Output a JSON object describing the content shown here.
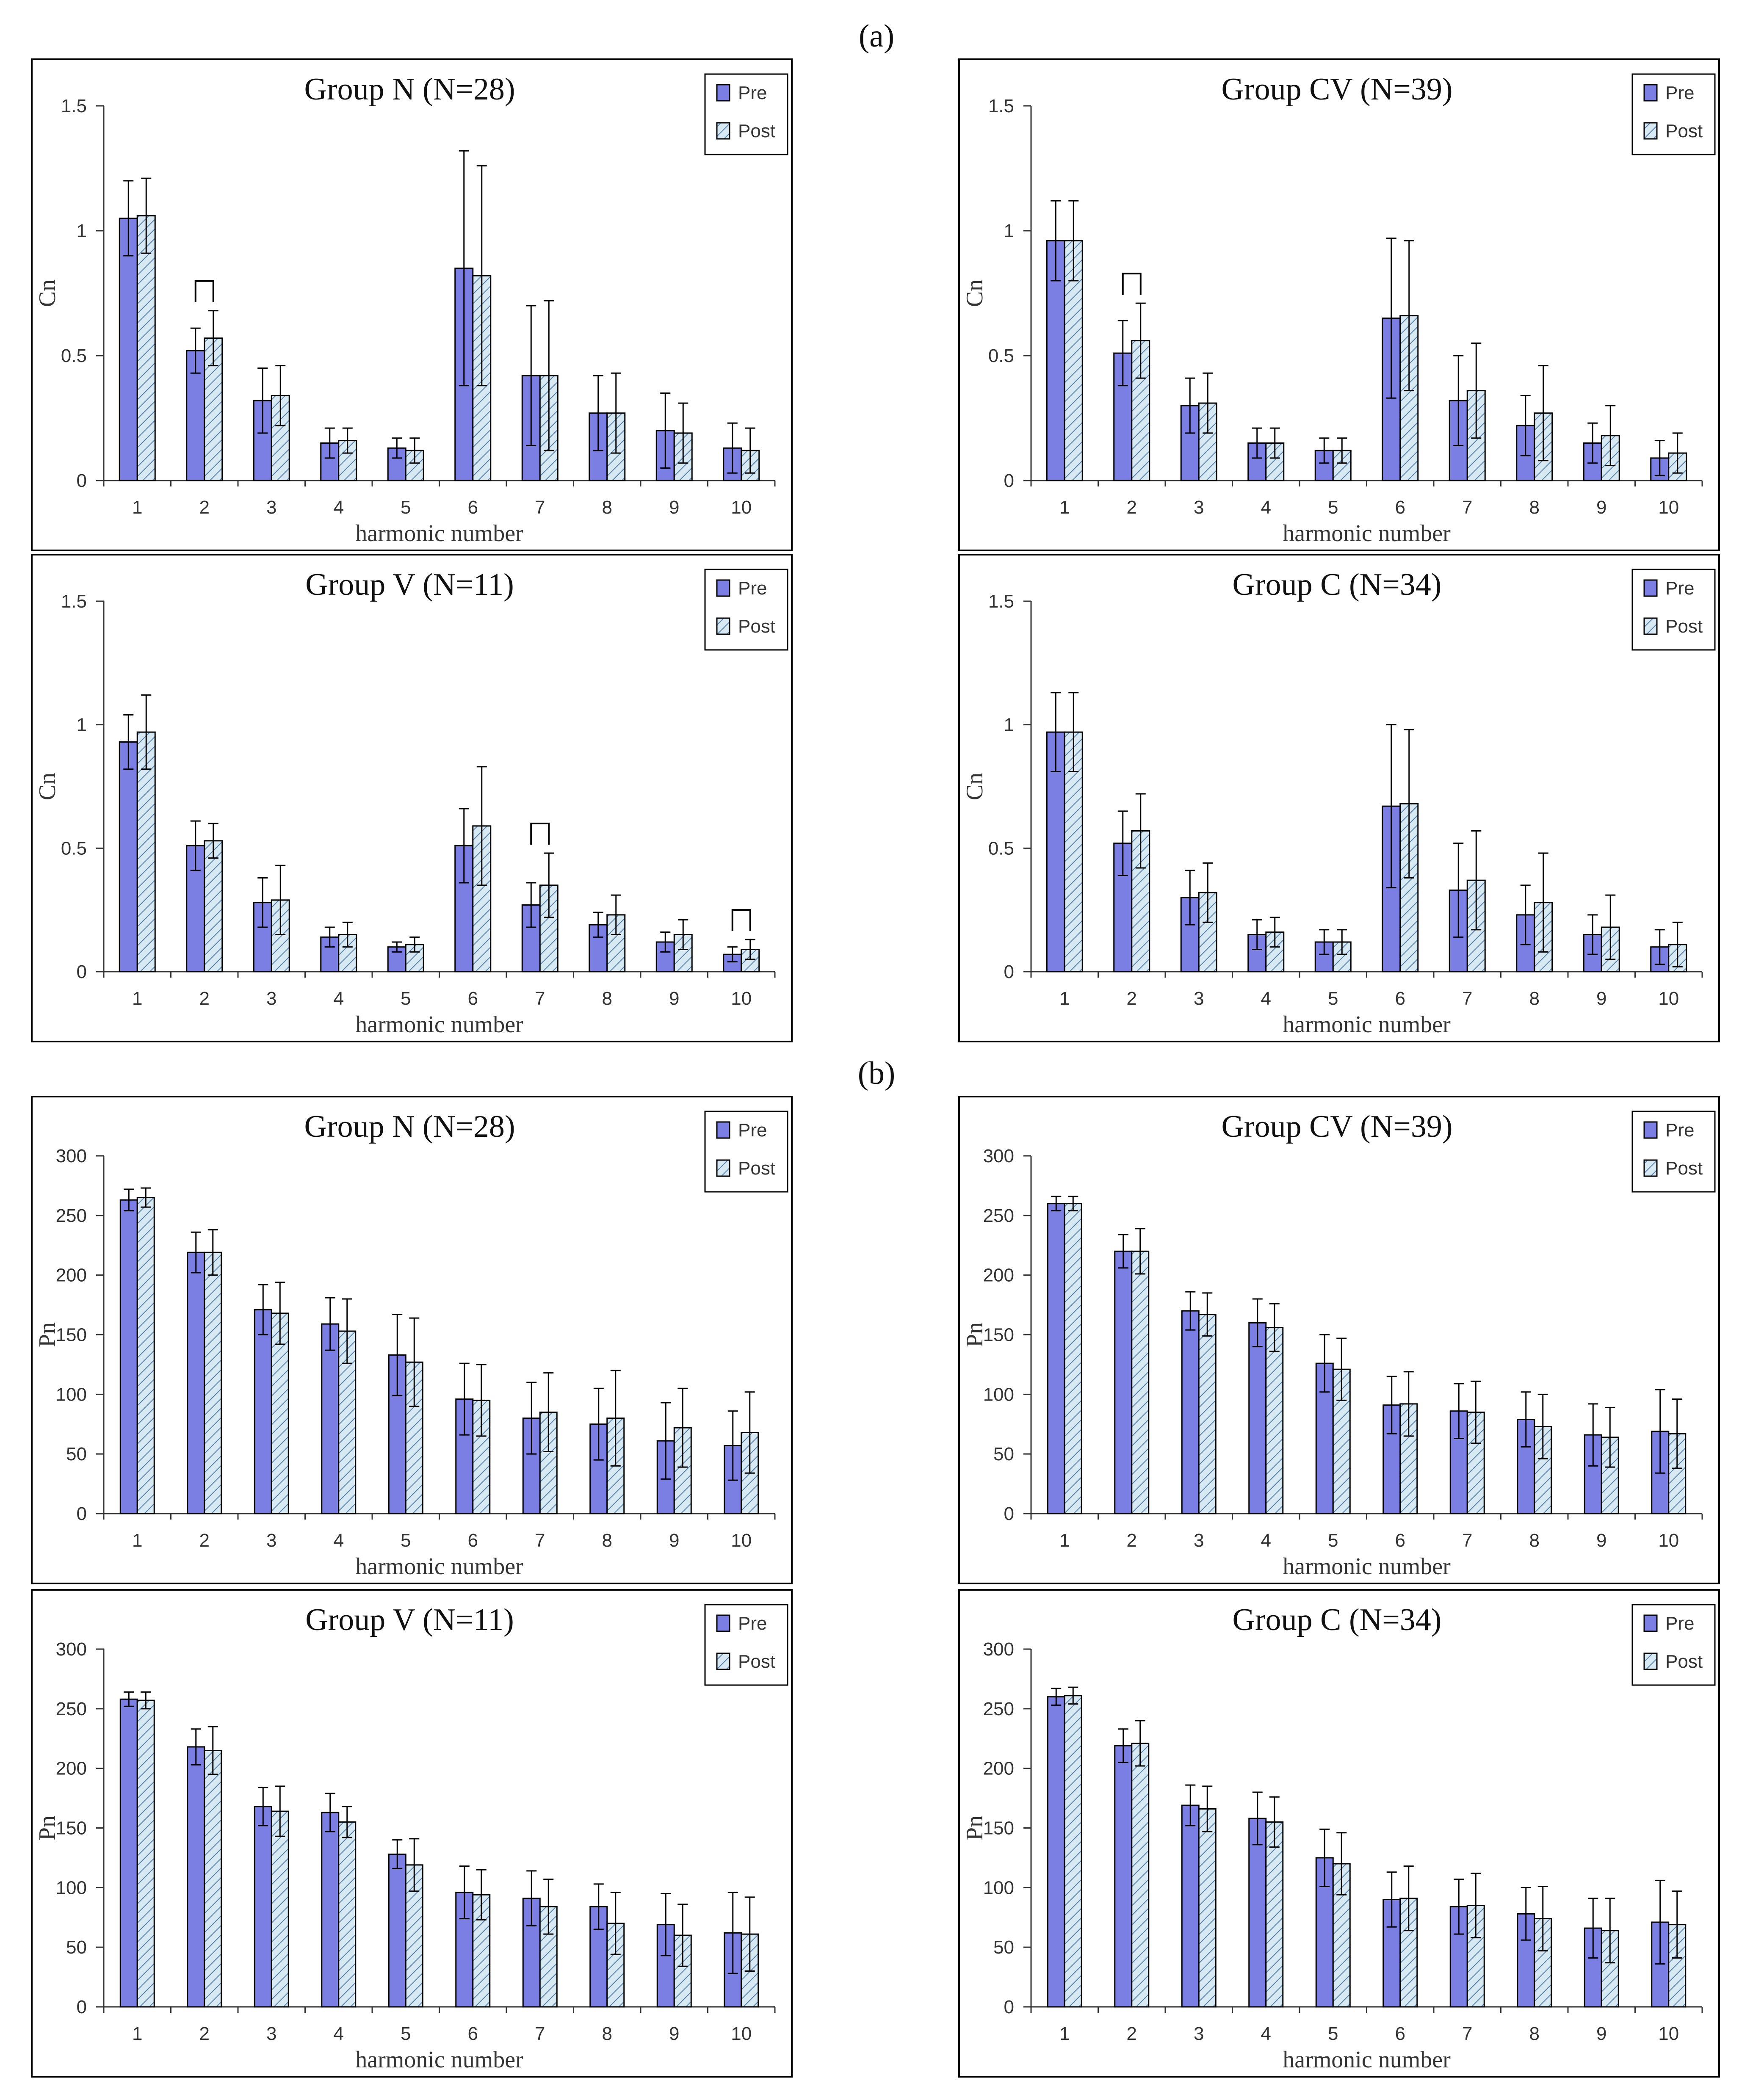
{
  "panel_labels": [
    "(a)",
    "(b)"
  ],
  "colors": {
    "pre": "#7b7fe3",
    "post_bg": "#d7eaf4",
    "post_hatch": "#5c7fa6",
    "frame": "#000000",
    "axis": "#333333"
  },
  "chart_data": [
    {
      "type": "bar",
      "title": "Group N (N=28)",
      "xlabel": "harmonic number",
      "ylabel": "Cn",
      "categories": [
        "1",
        "2",
        "3",
        "4",
        "5",
        "6",
        "7",
        "8",
        "9",
        "10"
      ],
      "ylim": [
        0,
        1.5
      ],
      "yticks": [
        "0",
        "0.5",
        "1",
        "1.5"
      ],
      "ytick_values": [
        0,
        0.5,
        1,
        1.5
      ],
      "legend": [
        "Pre",
        "Post"
      ],
      "series": [
        {
          "name": "Pre",
          "values": [
            1.05,
            0.52,
            0.32,
            0.15,
            0.13,
            0.85,
            0.42,
            0.27,
            0.2,
            0.13
          ],
          "errors": [
            0.15,
            0.09,
            0.13,
            0.06,
            0.04,
            0.47,
            0.28,
            0.15,
            0.15,
            0.1
          ]
        },
        {
          "name": "Post",
          "values": [
            1.06,
            0.57,
            0.34,
            0.16,
            0.12,
            0.82,
            0.42,
            0.27,
            0.19,
            0.12
          ],
          "errors": [
            0.15,
            0.11,
            0.12,
            0.05,
            0.05,
            0.44,
            0.3,
            0.16,
            0.12,
            0.09
          ]
        }
      ],
      "significant": [
        2
      ]
    },
    {
      "type": "bar",
      "title": "Group CV (N=39)",
      "xlabel": "harmonic number",
      "ylabel": "Cn",
      "categories": [
        "1",
        "2",
        "3",
        "4",
        "5",
        "6",
        "7",
        "8",
        "9",
        "10"
      ],
      "ylim": [
        0,
        1.5
      ],
      "yticks": [
        "0",
        "0.5",
        "1",
        "1.5"
      ],
      "ytick_values": [
        0,
        0.5,
        1,
        1.5
      ],
      "legend": [
        "Pre",
        "Post"
      ],
      "series": [
        {
          "name": "Pre",
          "values": [
            0.96,
            0.51,
            0.3,
            0.15,
            0.12,
            0.65,
            0.32,
            0.22,
            0.15,
            0.09
          ],
          "errors": [
            0.16,
            0.13,
            0.11,
            0.06,
            0.05,
            0.32,
            0.18,
            0.12,
            0.08,
            0.07
          ]
        },
        {
          "name": "Post",
          "values": [
            0.96,
            0.56,
            0.31,
            0.15,
            0.12,
            0.66,
            0.36,
            0.27,
            0.18,
            0.11
          ],
          "errors": [
            0.16,
            0.15,
            0.12,
            0.06,
            0.05,
            0.3,
            0.19,
            0.19,
            0.12,
            0.08
          ]
        }
      ],
      "significant": [
        2
      ]
    },
    {
      "type": "bar",
      "title": "Group V (N=11)",
      "xlabel": "harmonic number",
      "ylabel": "Cn",
      "categories": [
        "1",
        "2",
        "3",
        "4",
        "5",
        "6",
        "7",
        "8",
        "9",
        "10"
      ],
      "ylim": [
        0,
        1.5
      ],
      "yticks": [
        "0",
        "0.5",
        "1",
        "1.5"
      ],
      "ytick_values": [
        0,
        0.5,
        1,
        1.5
      ],
      "legend": [
        "Pre",
        "Post"
      ],
      "series": [
        {
          "name": "Pre",
          "values": [
            0.93,
            0.51,
            0.28,
            0.14,
            0.1,
            0.51,
            0.27,
            0.19,
            0.12,
            0.07
          ],
          "errors": [
            0.11,
            0.1,
            0.1,
            0.04,
            0.02,
            0.15,
            0.09,
            0.05,
            0.04,
            0.03
          ]
        },
        {
          "name": "Post",
          "values": [
            0.97,
            0.53,
            0.29,
            0.15,
            0.11,
            0.59,
            0.35,
            0.23,
            0.15,
            0.09
          ],
          "errors": [
            0.15,
            0.07,
            0.14,
            0.05,
            0.03,
            0.24,
            0.13,
            0.08,
            0.06,
            0.04
          ]
        }
      ],
      "significant": [
        7,
        10
      ]
    },
    {
      "type": "bar",
      "title": "Group C (N=34)",
      "xlabel": "harmonic number",
      "ylabel": "Cn",
      "categories": [
        "1",
        "2",
        "3",
        "4",
        "5",
        "6",
        "7",
        "8",
        "9",
        "10"
      ],
      "ylim": [
        0,
        1.5
      ],
      "yticks": [
        "0",
        "0.5",
        "1",
        "1.5"
      ],
      "ytick_values": [
        0,
        0.5,
        1,
        1.5
      ],
      "legend": [
        "Pre",
        "Post"
      ],
      "series": [
        {
          "name": "Pre",
          "values": [
            0.97,
            0.52,
            0.3,
            0.15,
            0.12,
            0.67,
            0.33,
            0.23,
            0.15,
            0.1
          ],
          "errors": [
            0.16,
            0.13,
            0.11,
            0.06,
            0.05,
            0.33,
            0.19,
            0.12,
            0.08,
            0.07
          ]
        },
        {
          "name": "Post",
          "values": [
            0.97,
            0.57,
            0.32,
            0.16,
            0.12,
            0.68,
            0.37,
            0.28,
            0.18,
            0.11
          ],
          "errors": [
            0.16,
            0.15,
            0.12,
            0.06,
            0.05,
            0.3,
            0.2,
            0.2,
            0.13,
            0.09
          ]
        }
      ],
      "significant": []
    },
    {
      "type": "bar",
      "title": "Group N (N=28)",
      "xlabel": "harmonic number",
      "ylabel": "Pn",
      "categories": [
        "1",
        "2",
        "3",
        "4",
        "5",
        "6",
        "7",
        "8",
        "9",
        "10"
      ],
      "ylim": [
        0,
        300
      ],
      "yticks": [
        "0",
        "50",
        "100",
        "150",
        "200",
        "250",
        "300"
      ],
      "ytick_values": [
        0,
        50,
        100,
        150,
        200,
        250,
        300
      ],
      "legend": [
        "Pre",
        "Post"
      ],
      "series": [
        {
          "name": "Pre",
          "values": [
            263,
            219,
            171,
            159,
            133,
            96,
            80,
            75,
            61,
            57
          ],
          "errors": [
            9,
            17,
            21,
            22,
            34,
            30,
            30,
            30,
            32,
            29
          ]
        },
        {
          "name": "Post",
          "values": [
            265,
            219,
            168,
            153,
            127,
            95,
            85,
            80,
            72,
            68
          ],
          "errors": [
            8,
            19,
            26,
            27,
            37,
            30,
            33,
            40,
            33,
            34
          ]
        }
      ],
      "significant": []
    },
    {
      "type": "bar",
      "title": "Group CV (N=39)",
      "xlabel": "harmonic number",
      "ylabel": "Pn",
      "categories": [
        "1",
        "2",
        "3",
        "4",
        "5",
        "6",
        "7",
        "8",
        "9",
        "10"
      ],
      "ylim": [
        0,
        300
      ],
      "yticks": [
        "0",
        "50",
        "100",
        "150",
        "200",
        "250",
        "300"
      ],
      "ytick_values": [
        0,
        50,
        100,
        150,
        200,
        250,
        300
      ],
      "legend": [
        "Pre",
        "Post"
      ],
      "series": [
        {
          "name": "Pre",
          "values": [
            260,
            220,
            170,
            160,
            126,
            91,
            86,
            79,
            66,
            69
          ],
          "errors": [
            6,
            14,
            16,
            20,
            24,
            24,
            23,
            23,
            26,
            35
          ]
        },
        {
          "name": "Post",
          "values": [
            260,
            220,
            167,
            156,
            121,
            92,
            85,
            73,
            64,
            67
          ],
          "errors": [
            6,
            19,
            18,
            20,
            26,
            27,
            26,
            27,
            25,
            29
          ]
        }
      ],
      "significant": []
    },
    {
      "type": "bar",
      "title": "Group V (N=11)",
      "xlabel": "harmonic number",
      "ylabel": "Pn",
      "categories": [
        "1",
        "2",
        "3",
        "4",
        "5",
        "6",
        "7",
        "8",
        "9",
        "10"
      ],
      "ylim": [
        0,
        300
      ],
      "yticks": [
        "0",
        "50",
        "100",
        "150",
        "200",
        "250",
        "300"
      ],
      "ytick_values": [
        0,
        50,
        100,
        150,
        200,
        250,
        300
      ],
      "legend": [
        "Pre",
        "Post"
      ],
      "series": [
        {
          "name": "Pre",
          "values": [
            258,
            218,
            168,
            163,
            128,
            96,
            91,
            84,
            69,
            62
          ],
          "errors": [
            6,
            15,
            16,
            16,
            12,
            22,
            23,
            19,
            26,
            34
          ]
        },
        {
          "name": "Post",
          "values": [
            257,
            215,
            164,
            155,
            119,
            94,
            84,
            70,
            60,
            61
          ],
          "errors": [
            7,
            20,
            21,
            13,
            22,
            21,
            23,
            26,
            26,
            31
          ]
        }
      ],
      "significant": []
    },
    {
      "type": "bar",
      "title": "Group C (N=34)",
      "xlabel": "harmonic number",
      "ylabel": "Pn",
      "categories": [
        "1",
        "2",
        "3",
        "4",
        "5",
        "6",
        "7",
        "8",
        "9",
        "10"
      ],
      "ylim": [
        0,
        300
      ],
      "yticks": [
        "0",
        "50",
        "100",
        "150",
        "200",
        "250",
        "300"
      ],
      "ytick_values": [
        0,
        50,
        100,
        150,
        200,
        250,
        300
      ],
      "legend": [
        "Pre",
        "Post"
      ],
      "series": [
        {
          "name": "Pre",
          "values": [
            260,
            219,
            169,
            158,
            125,
            90,
            84,
            78,
            66,
            71
          ],
          "errors": [
            7,
            14,
            17,
            22,
            24,
            23,
            23,
            22,
            25,
            35
          ]
        },
        {
          "name": "Post",
          "values": [
            261,
            221,
            166,
            155,
            120,
            91,
            85,
            74,
            64,
            69
          ],
          "errors": [
            7,
            19,
            19,
            21,
            26,
            27,
            27,
            27,
            27,
            28
          ]
        }
      ],
      "significant": []
    }
  ]
}
